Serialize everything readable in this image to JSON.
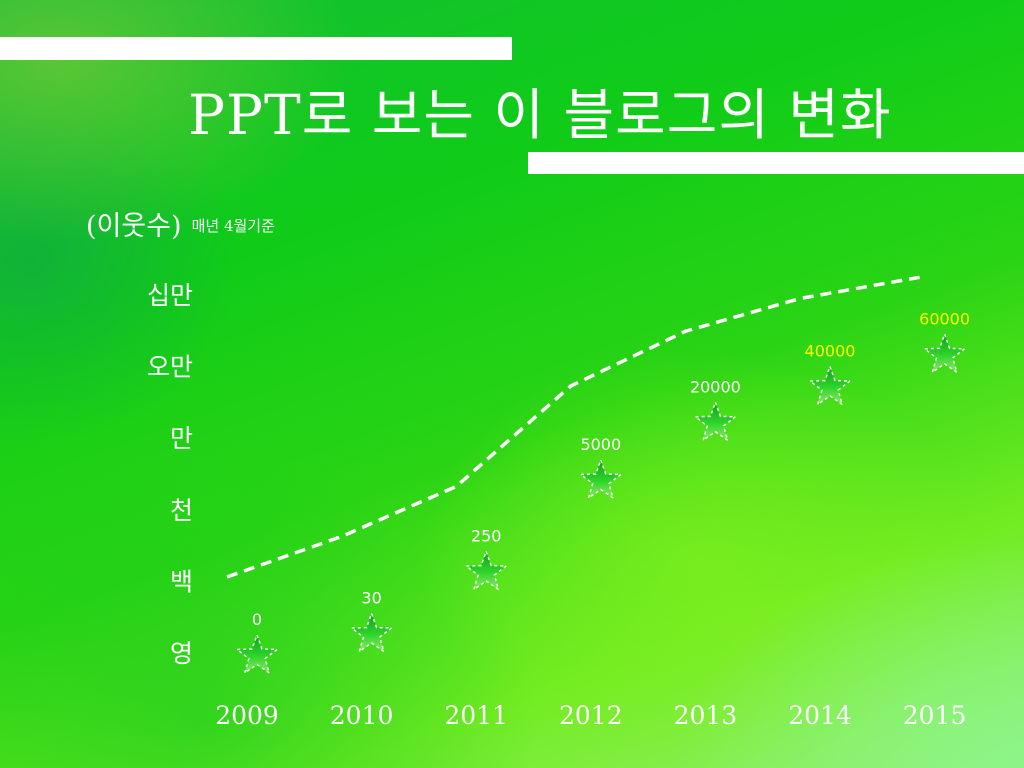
{
  "slide": {
    "title": "PPT로 보는 이 블로그의 변화",
    "unit_label": "(이웃수)",
    "unit_note": "매년 4월기준"
  },
  "colors": {
    "text": "#ffffff",
    "label_white": "#ffffff",
    "label_yellow": "#ffff00",
    "trend_line": "#ffffff",
    "star": "#14c814"
  },
  "chart_data": {
    "type": "scatter",
    "marker": "star",
    "x": [
      "2009",
      "2010",
      "2011",
      "2012",
      "2013",
      "2014",
      "2015"
    ],
    "y_tick_labels": [
      "영",
      "백",
      "천",
      "만",
      "오만",
      "십만"
    ],
    "values": [
      0,
      30,
      250,
      5000,
      20000,
      40000,
      60000
    ],
    "data_labels": [
      "0",
      "30",
      "250",
      "5000",
      "20000",
      "40000",
      "60000"
    ],
    "trend_line": {
      "style": "dashed",
      "color": "#ffffff"
    },
    "grid": false,
    "legend": "none"
  }
}
